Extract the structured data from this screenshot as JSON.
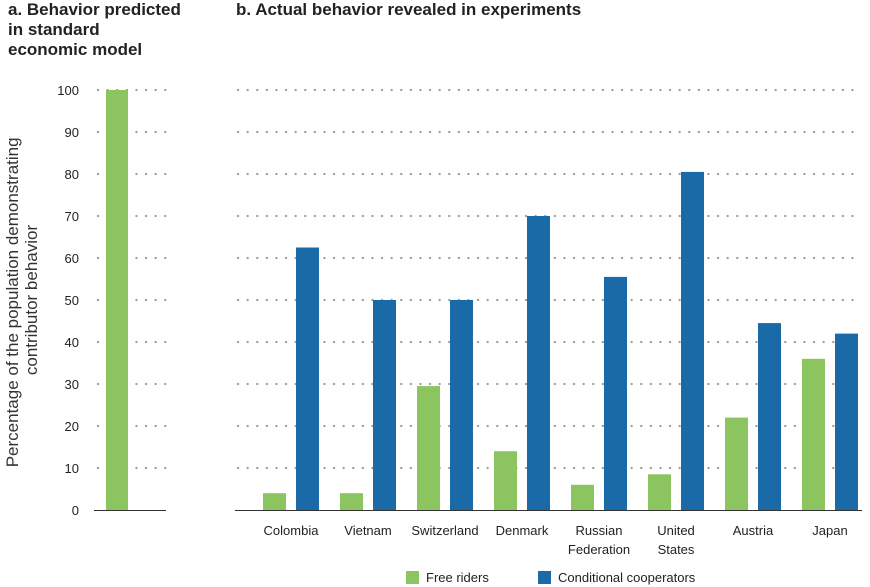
{
  "panel_a_title": [
    "a. Behavior predicted",
    "in standard",
    "economic model"
  ],
  "panel_b_title": "b. Actual behavior revealed in experiments",
  "y_axis_label": [
    "Percentage of the population demonstrating",
    "contributor behavior"
  ],
  "colors": {
    "free_riders": "#8cc560",
    "conditional_cooperators": "#1a6aa8"
  },
  "chart_data": [
    {
      "type": "bar",
      "title": "a. Behavior predicted in standard economic model",
      "ylabel": "Percentage of the population demonstrating contributor behavior",
      "ylim": [
        0,
        100
      ],
      "yticks": [
        0,
        10,
        20,
        30,
        40,
        50,
        60,
        70,
        80,
        90,
        100
      ],
      "grid": true,
      "categories": [
        ""
      ],
      "series": [
        {
          "name": "Free riders",
          "values": [
            100
          ]
        }
      ]
    },
    {
      "type": "bar",
      "title": "b. Actual behavior revealed in experiments",
      "ylim": [
        0,
        100
      ],
      "grid": true,
      "legend": "bottom",
      "categories": [
        [
          "Colombia"
        ],
        [
          "Vietnam"
        ],
        [
          "Switzerland"
        ],
        [
          "Denmark"
        ],
        [
          "Russian",
          "Federation"
        ],
        [
          "United",
          "States"
        ],
        [
          "Austria"
        ],
        [
          "Japan"
        ]
      ],
      "series": [
        {
          "name": "Free riders",
          "values": [
            4,
            4,
            29.5,
            14,
            6,
            8.5,
            22,
            36
          ]
        },
        {
          "name": "Conditional cooperators",
          "values": [
            62.5,
            50,
            50,
            70,
            55.5,
            80.5,
            44.5,
            42
          ]
        }
      ]
    }
  ]
}
